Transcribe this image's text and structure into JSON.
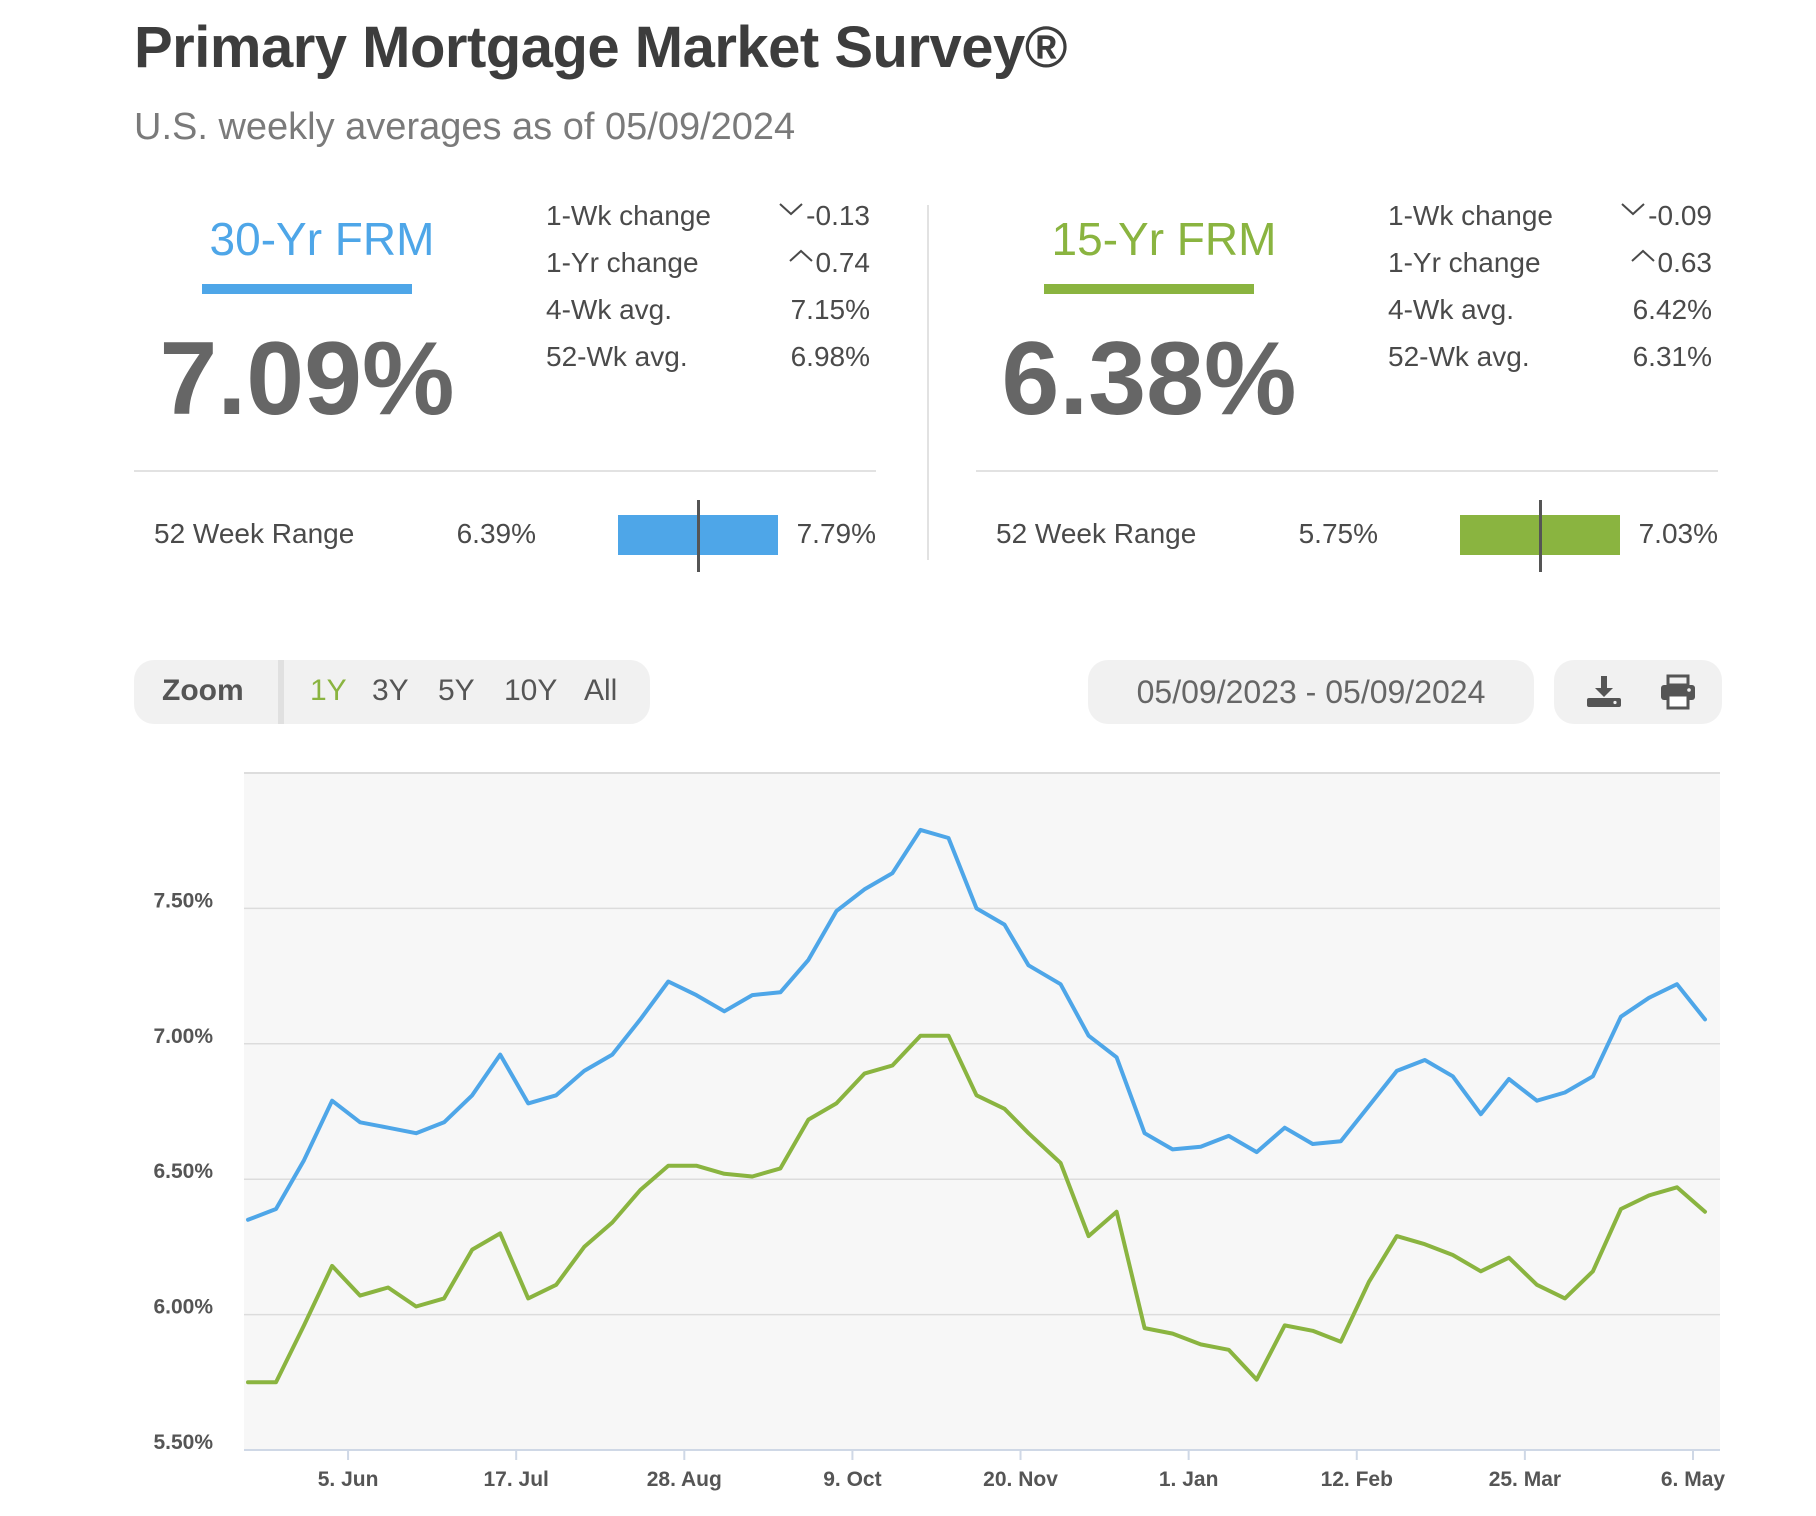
{
  "header": {
    "title": "Primary Mortgage Market Survey®",
    "subtitle": "U.S. weekly averages as of 05/09/2024"
  },
  "panels": [
    {
      "name": "30-Yr FRM",
      "rate": "7.09%",
      "color": "#4ea6e8",
      "stats": [
        {
          "label": "1-Wk change",
          "value": "-0.13",
          "direction": "down"
        },
        {
          "label": "1-Yr change",
          "value": "0.74",
          "direction": "up"
        },
        {
          "label": "4-Wk avg.",
          "value": "7.15%"
        },
        {
          "label": "52-Wk avg.",
          "value": "6.98%"
        }
      ],
      "range": {
        "label": "52 Week Range",
        "low": "6.39%",
        "high": "7.79%",
        "current_fraction": 0.5
      }
    },
    {
      "name": "15-Yr FRM",
      "rate": "6.38%",
      "color": "#8ab440",
      "stats": [
        {
          "label": "1-Wk change",
          "value": "-0.09",
          "direction": "down"
        },
        {
          "label": "1-Yr change",
          "value": "0.63",
          "direction": "up"
        },
        {
          "label": "4-Wk avg.",
          "value": "6.42%"
        },
        {
          "label": "52-Wk avg.",
          "value": "6.31%"
        }
      ],
      "range": {
        "label": "52 Week Range",
        "low": "5.75%",
        "high": "7.03%",
        "current_fraction": 0.5
      }
    }
  ],
  "controls": {
    "zoom_label": "Zoom",
    "zoom_options": [
      "1Y",
      "3Y",
      "5Y",
      "10Y",
      "All"
    ],
    "zoom_selected": "1Y",
    "date_range": "05/09/2023 - 05/09/2024",
    "icons": [
      "download-icon",
      "print-icon"
    ]
  },
  "chart_data": {
    "type": "line",
    "x_tick_labels": [
      "5. Jun",
      "17. Jul",
      "28. Aug",
      "9. Oct",
      "20. Nov",
      "1. Jan",
      "12. Feb",
      "25. Mar",
      "6. May"
    ],
    "y_tick_labels": [
      "5.50%",
      "6.00%",
      "6.50%",
      "7.00%",
      "7.50%"
    ],
    "ylim": [
      5.5,
      8.0
    ],
    "grid": true,
    "x": [
      "2023-05-11",
      "2023-05-18",
      "2023-05-25",
      "2023-06-01",
      "2023-06-08",
      "2023-06-15",
      "2023-06-22",
      "2023-06-29",
      "2023-07-06",
      "2023-07-13",
      "2023-07-20",
      "2023-07-27",
      "2023-08-03",
      "2023-08-10",
      "2023-08-17",
      "2023-08-24",
      "2023-08-31",
      "2023-09-07",
      "2023-09-14",
      "2023-09-21",
      "2023-09-28",
      "2023-10-05",
      "2023-10-12",
      "2023-10-19",
      "2023-10-26",
      "2023-11-02",
      "2023-11-09",
      "2023-11-16",
      "2023-11-22",
      "2023-11-30",
      "2023-12-07",
      "2023-12-14",
      "2023-12-21",
      "2023-12-28",
      "2024-01-04",
      "2024-01-11",
      "2024-01-18",
      "2024-01-25",
      "2024-02-01",
      "2024-02-08",
      "2024-02-15",
      "2024-02-22",
      "2024-02-29",
      "2024-03-07",
      "2024-03-14",
      "2024-03-21",
      "2024-03-28",
      "2024-04-04",
      "2024-04-11",
      "2024-04-18",
      "2024-04-25",
      "2024-05-02",
      "2024-05-09"
    ],
    "series": [
      {
        "color": "#4ea6e8",
        "values": [
          6.35,
          6.39,
          6.57,
          6.79,
          6.71,
          6.69,
          6.67,
          6.71,
          6.81,
          6.96,
          6.78,
          6.81,
          6.9,
          6.96,
          7.09,
          7.23,
          7.18,
          7.12,
          7.18,
          7.19,
          7.31,
          7.49,
          7.57,
          7.63,
          7.79,
          7.76,
          7.5,
          7.44,
          7.29,
          7.22,
          7.03,
          6.95,
          6.67,
          6.61,
          6.62,
          6.66,
          6.6,
          6.69,
          6.63,
          6.64,
          6.77,
          6.9,
          6.94,
          6.88,
          6.74,
          6.87,
          6.79,
          6.82,
          6.88,
          7.1,
          7.17,
          7.22,
          7.09
        ]
      },
      {
        "color": "#8ab440",
        "values": [
          5.75,
          5.75,
          5.96,
          6.18,
          6.07,
          6.1,
          6.03,
          6.06,
          6.24,
          6.3,
          6.06,
          6.11,
          6.25,
          6.34,
          6.46,
          6.55,
          6.55,
          6.52,
          6.51,
          6.54,
          6.72,
          6.78,
          6.89,
          6.92,
          7.03,
          7.03,
          6.81,
          6.76,
          6.67,
          6.56,
          6.29,
          6.38,
          5.95,
          5.93,
          5.89,
          5.87,
          5.76,
          5.96,
          5.94,
          5.9,
          6.12,
          6.29,
          6.26,
          6.22,
          6.16,
          6.21,
          6.11,
          6.06,
          6.16,
          6.39,
          6.44,
          6.47,
          6.38
        ]
      }
    ]
  }
}
